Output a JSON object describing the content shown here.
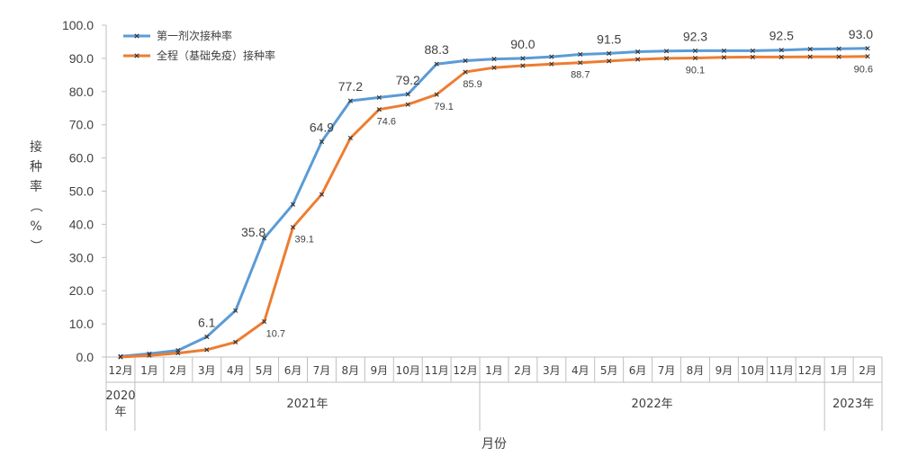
{
  "chart_data": {
    "type": "line",
    "xlabel": "月份",
    "ylabel": "接种率（%）",
    "ylim": [
      0,
      100
    ],
    "y_ticks": [
      "0.0",
      "10.0",
      "20.0",
      "30.0",
      "40.0",
      "50.0",
      "60.0",
      "70.0",
      "80.0",
      "90.0",
      "100.0"
    ],
    "legend_position": "top-left",
    "grid": false,
    "categories": [
      "12月",
      "1月",
      "2月",
      "3月",
      "4月",
      "5月",
      "6月",
      "7月",
      "8月",
      "9月",
      "10月",
      "11月",
      "12月",
      "1月",
      "2月",
      "3月",
      "4月",
      "5月",
      "6月",
      "7月",
      "8月",
      "9月",
      "10月",
      "11月",
      "12月",
      "1月",
      "2月"
    ],
    "year_groups": [
      {
        "label": "2020年",
        "start": 0,
        "end": 0
      },
      {
        "label": "2021年",
        "start": 1,
        "end": 12
      },
      {
        "label": "2022年",
        "start": 13,
        "end": 24
      },
      {
        "label": "2023年",
        "start": 25,
        "end": 26
      }
    ],
    "series": [
      {
        "name": "第一剂次接种率",
        "color": "#5B9BD5",
        "values": [
          0.2,
          1.0,
          2.0,
          6.1,
          14.0,
          35.8,
          46.0,
          64.9,
          77.2,
          78.2,
          79.2,
          88.3,
          89.3,
          89.8,
          90.0,
          90.5,
          91.2,
          91.5,
          92.0,
          92.2,
          92.3,
          92.3,
          92.3,
          92.5,
          92.8,
          92.9,
          93.0
        ],
        "labeled_points": [
          {
            "index": 3,
            "text": "6.1"
          },
          {
            "index": 5,
            "text": "35.8"
          },
          {
            "index": 7,
            "text": "64.9"
          },
          {
            "index": 8,
            "text": "77.2"
          },
          {
            "index": 10,
            "text": "79.2"
          },
          {
            "index": 11,
            "text": "88.3"
          },
          {
            "index": 14,
            "text": "90.0"
          },
          {
            "index": 17,
            "text": "91.5"
          },
          {
            "index": 20,
            "text": "92.3"
          },
          {
            "index": 23,
            "text": "92.5"
          },
          {
            "index": 26,
            "text": "93.0"
          }
        ]
      },
      {
        "name": "全程（基础免疫）接种率",
        "color": "#ED7D31",
        "values": [
          0.0,
          0.5,
          1.2,
          2.2,
          4.5,
          10.7,
          39.1,
          49.0,
          66.0,
          74.6,
          76.1,
          79.1,
          85.9,
          87.2,
          87.8,
          88.3,
          88.7,
          89.2,
          89.7,
          90.0,
          90.1,
          90.3,
          90.4,
          90.4,
          90.5,
          90.5,
          90.6
        ],
        "labeled_points": [
          {
            "index": 5,
            "text": "10.7"
          },
          {
            "index": 6,
            "text": "39.1"
          },
          {
            "index": 9,
            "text": "74.6"
          },
          {
            "index": 11,
            "text": "79.1"
          },
          {
            "index": 12,
            "text": "85.9"
          },
          {
            "index": 16,
            "text": "88.7"
          },
          {
            "index": 20,
            "text": "90.1"
          },
          {
            "index": 26,
            "text": "90.6"
          }
        ]
      }
    ]
  }
}
